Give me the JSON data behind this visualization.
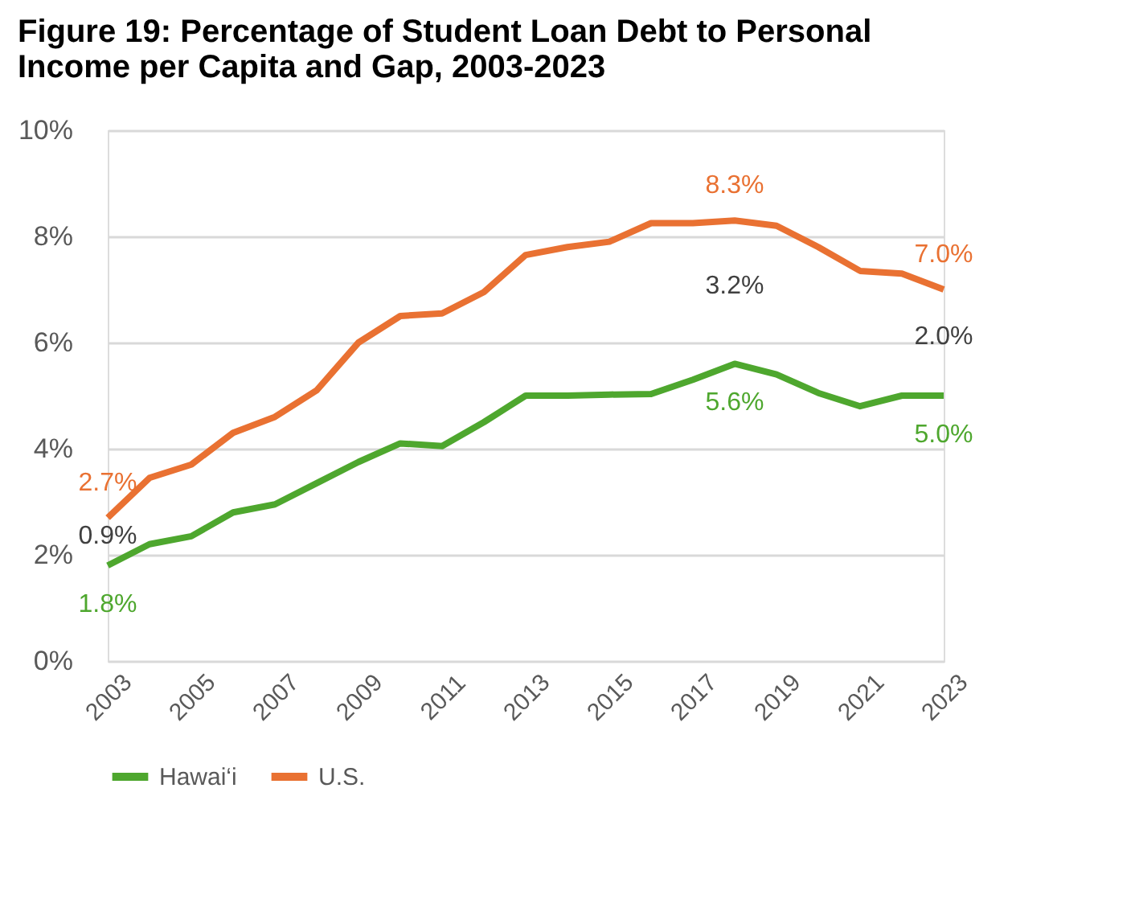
{
  "chart_data": {
    "type": "line",
    "title": "Figure 19: Percentage of Student Loan Debt to Personal Income per Capita and Gap, 2003-2023",
    "x": [
      2003,
      2004,
      2005,
      2006,
      2007,
      2008,
      2009,
      2010,
      2011,
      2012,
      2013,
      2014,
      2015,
      2016,
      2017,
      2018,
      2019,
      2020,
      2021,
      2022,
      2023
    ],
    "series": [
      {
        "name": "Hawai‘i",
        "color": "#4ea72e",
        "values": [
          1.8,
          2.2,
          2.35,
          2.8,
          2.95,
          3.35,
          3.75,
          4.1,
          4.05,
          4.5,
          5.0,
          5.0,
          5.02,
          5.03,
          5.3,
          5.6,
          5.4,
          5.05,
          4.8,
          5.0,
          5.0
        ],
        "value_labels": [
          "1.8%",
          null,
          null,
          null,
          null,
          null,
          null,
          null,
          null,
          null,
          null,
          null,
          null,
          null,
          null,
          "5.6%",
          null,
          null,
          null,
          null,
          "5.0%"
        ]
      },
      {
        "name": "U.S.",
        "color": "#e97132",
        "values": [
          2.7,
          3.45,
          3.7,
          4.3,
          4.6,
          5.1,
          6.0,
          6.5,
          6.55,
          6.95,
          7.65,
          7.8,
          7.9,
          8.25,
          8.25,
          8.3,
          8.2,
          7.8,
          7.35,
          7.3,
          7.0
        ],
        "value_labels": [
          "2.7%",
          null,
          null,
          null,
          null,
          null,
          null,
          null,
          null,
          null,
          null,
          null,
          null,
          null,
          null,
          "8.3%",
          null,
          null,
          null,
          null,
          "7.0%"
        ]
      }
    ],
    "annotations": [
      "0.9%",
      "3.2%",
      "2.0%"
    ],
    "xlim": [
      2003,
      2023
    ],
    "xticks": [
      2003,
      2005,
      2007,
      2009,
      2011,
      2013,
      2015,
      2017,
      2019,
      2021,
      2023
    ],
    "ylim": [
      0,
      10
    ],
    "yticks": [
      {
        "value": 0,
        "label": "0%"
      },
      {
        "value": 2,
        "label": "2%"
      },
      {
        "value": 4,
        "label": "4%"
      },
      {
        "value": 6,
        "label": "6%"
      },
      {
        "value": 8,
        "label": "8%"
      },
      {
        "value": 10,
        "label": "10%"
      }
    ],
    "grid": "y",
    "legend": "bottom",
    "marker": "none",
    "line_style": "solid"
  }
}
